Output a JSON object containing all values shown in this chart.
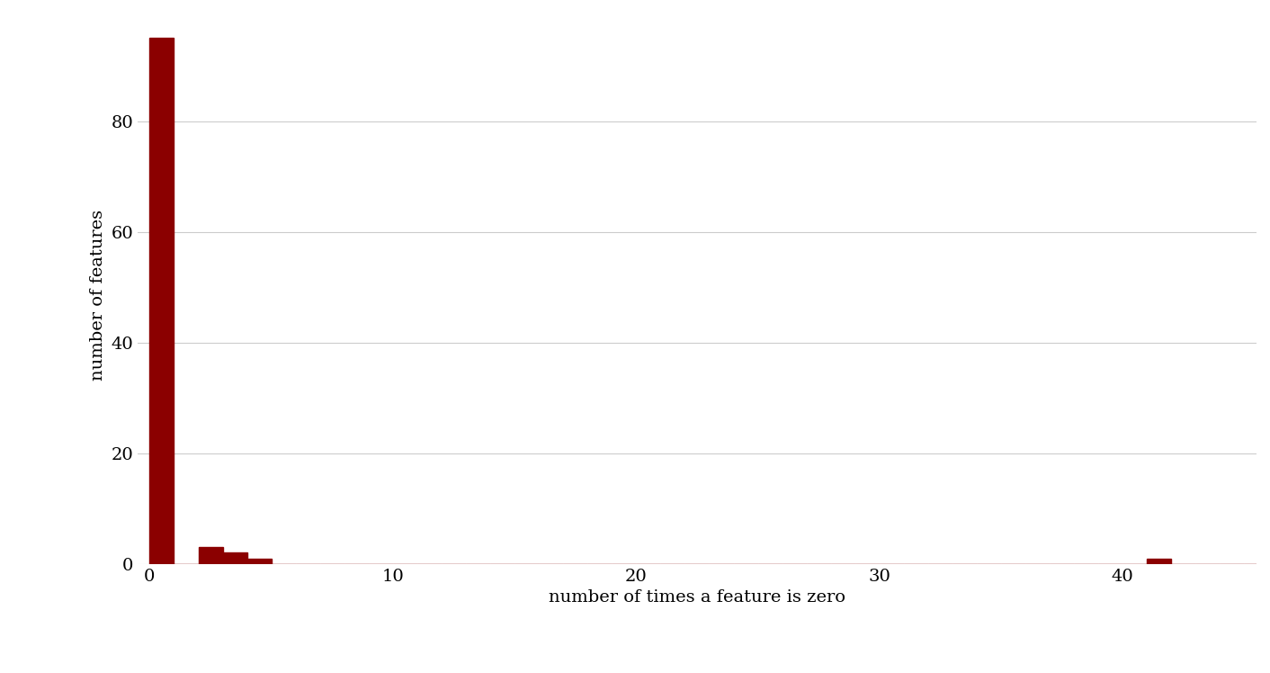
{
  "xlabel": "number of times a feature is zero",
  "ylabel": "number of features",
  "bar_color": "#8B0000",
  "background_color": "#ffffff",
  "grid_color": "#cccccc",
  "xlim": [
    -0.5,
    45.5
  ],
  "ylim": [
    0,
    97
  ],
  "yticks": [
    0,
    20,
    40,
    60,
    80
  ],
  "xticks": [
    0,
    10,
    20,
    30,
    40
  ],
  "hist_values": [
    95,
    0,
    3,
    2,
    1,
    0,
    0,
    0,
    0,
    0,
    0,
    0,
    0,
    0,
    0,
    0,
    0,
    0,
    0,
    0,
    0,
    0,
    0,
    0,
    0,
    0,
    0,
    0,
    0,
    0,
    0,
    0,
    0,
    0,
    0,
    0,
    0,
    0,
    0,
    0,
    0,
    1,
    0,
    0,
    0,
    0
  ],
  "title_fontsize": 16,
  "label_fontsize": 14,
  "tick_fontsize": 14
}
